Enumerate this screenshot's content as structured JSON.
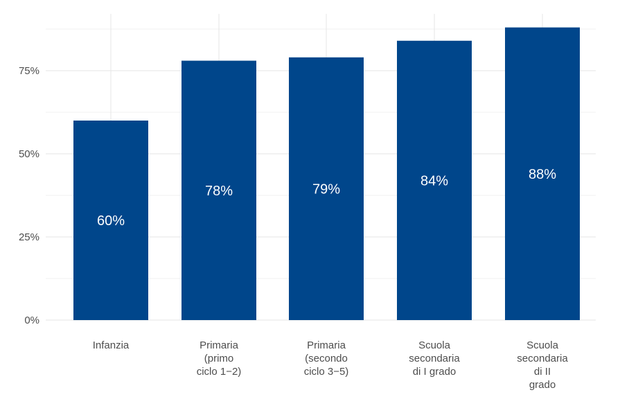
{
  "chart_data": {
    "type": "bar",
    "categories": [
      [
        "Infanzia"
      ],
      [
        "Primaria",
        "(primo",
        "ciclo 1−2)"
      ],
      [
        "Primaria",
        "(secondo",
        "ciclo 3−5)"
      ],
      [
        "Scuola",
        "secondaria",
        "di I grado"
      ],
      [
        "Scuola",
        "secondaria",
        "di II",
        "grado"
      ]
    ],
    "values": [
      0.6,
      0.78,
      0.79,
      0.84,
      0.88
    ],
    "data_labels": [
      "60%",
      "78%",
      "79%",
      "84%",
      "88%"
    ],
    "ylim": [
      0,
      0.9
    ],
    "y_ticks": [
      0,
      0.25,
      0.5,
      0.75
    ],
    "y_tick_labels": [
      "0%",
      "25%",
      "50%",
      "75%"
    ],
    "bar_color": "#00468b",
    "grid": true,
    "title": "",
    "xlabel": "",
    "ylabel": ""
  }
}
